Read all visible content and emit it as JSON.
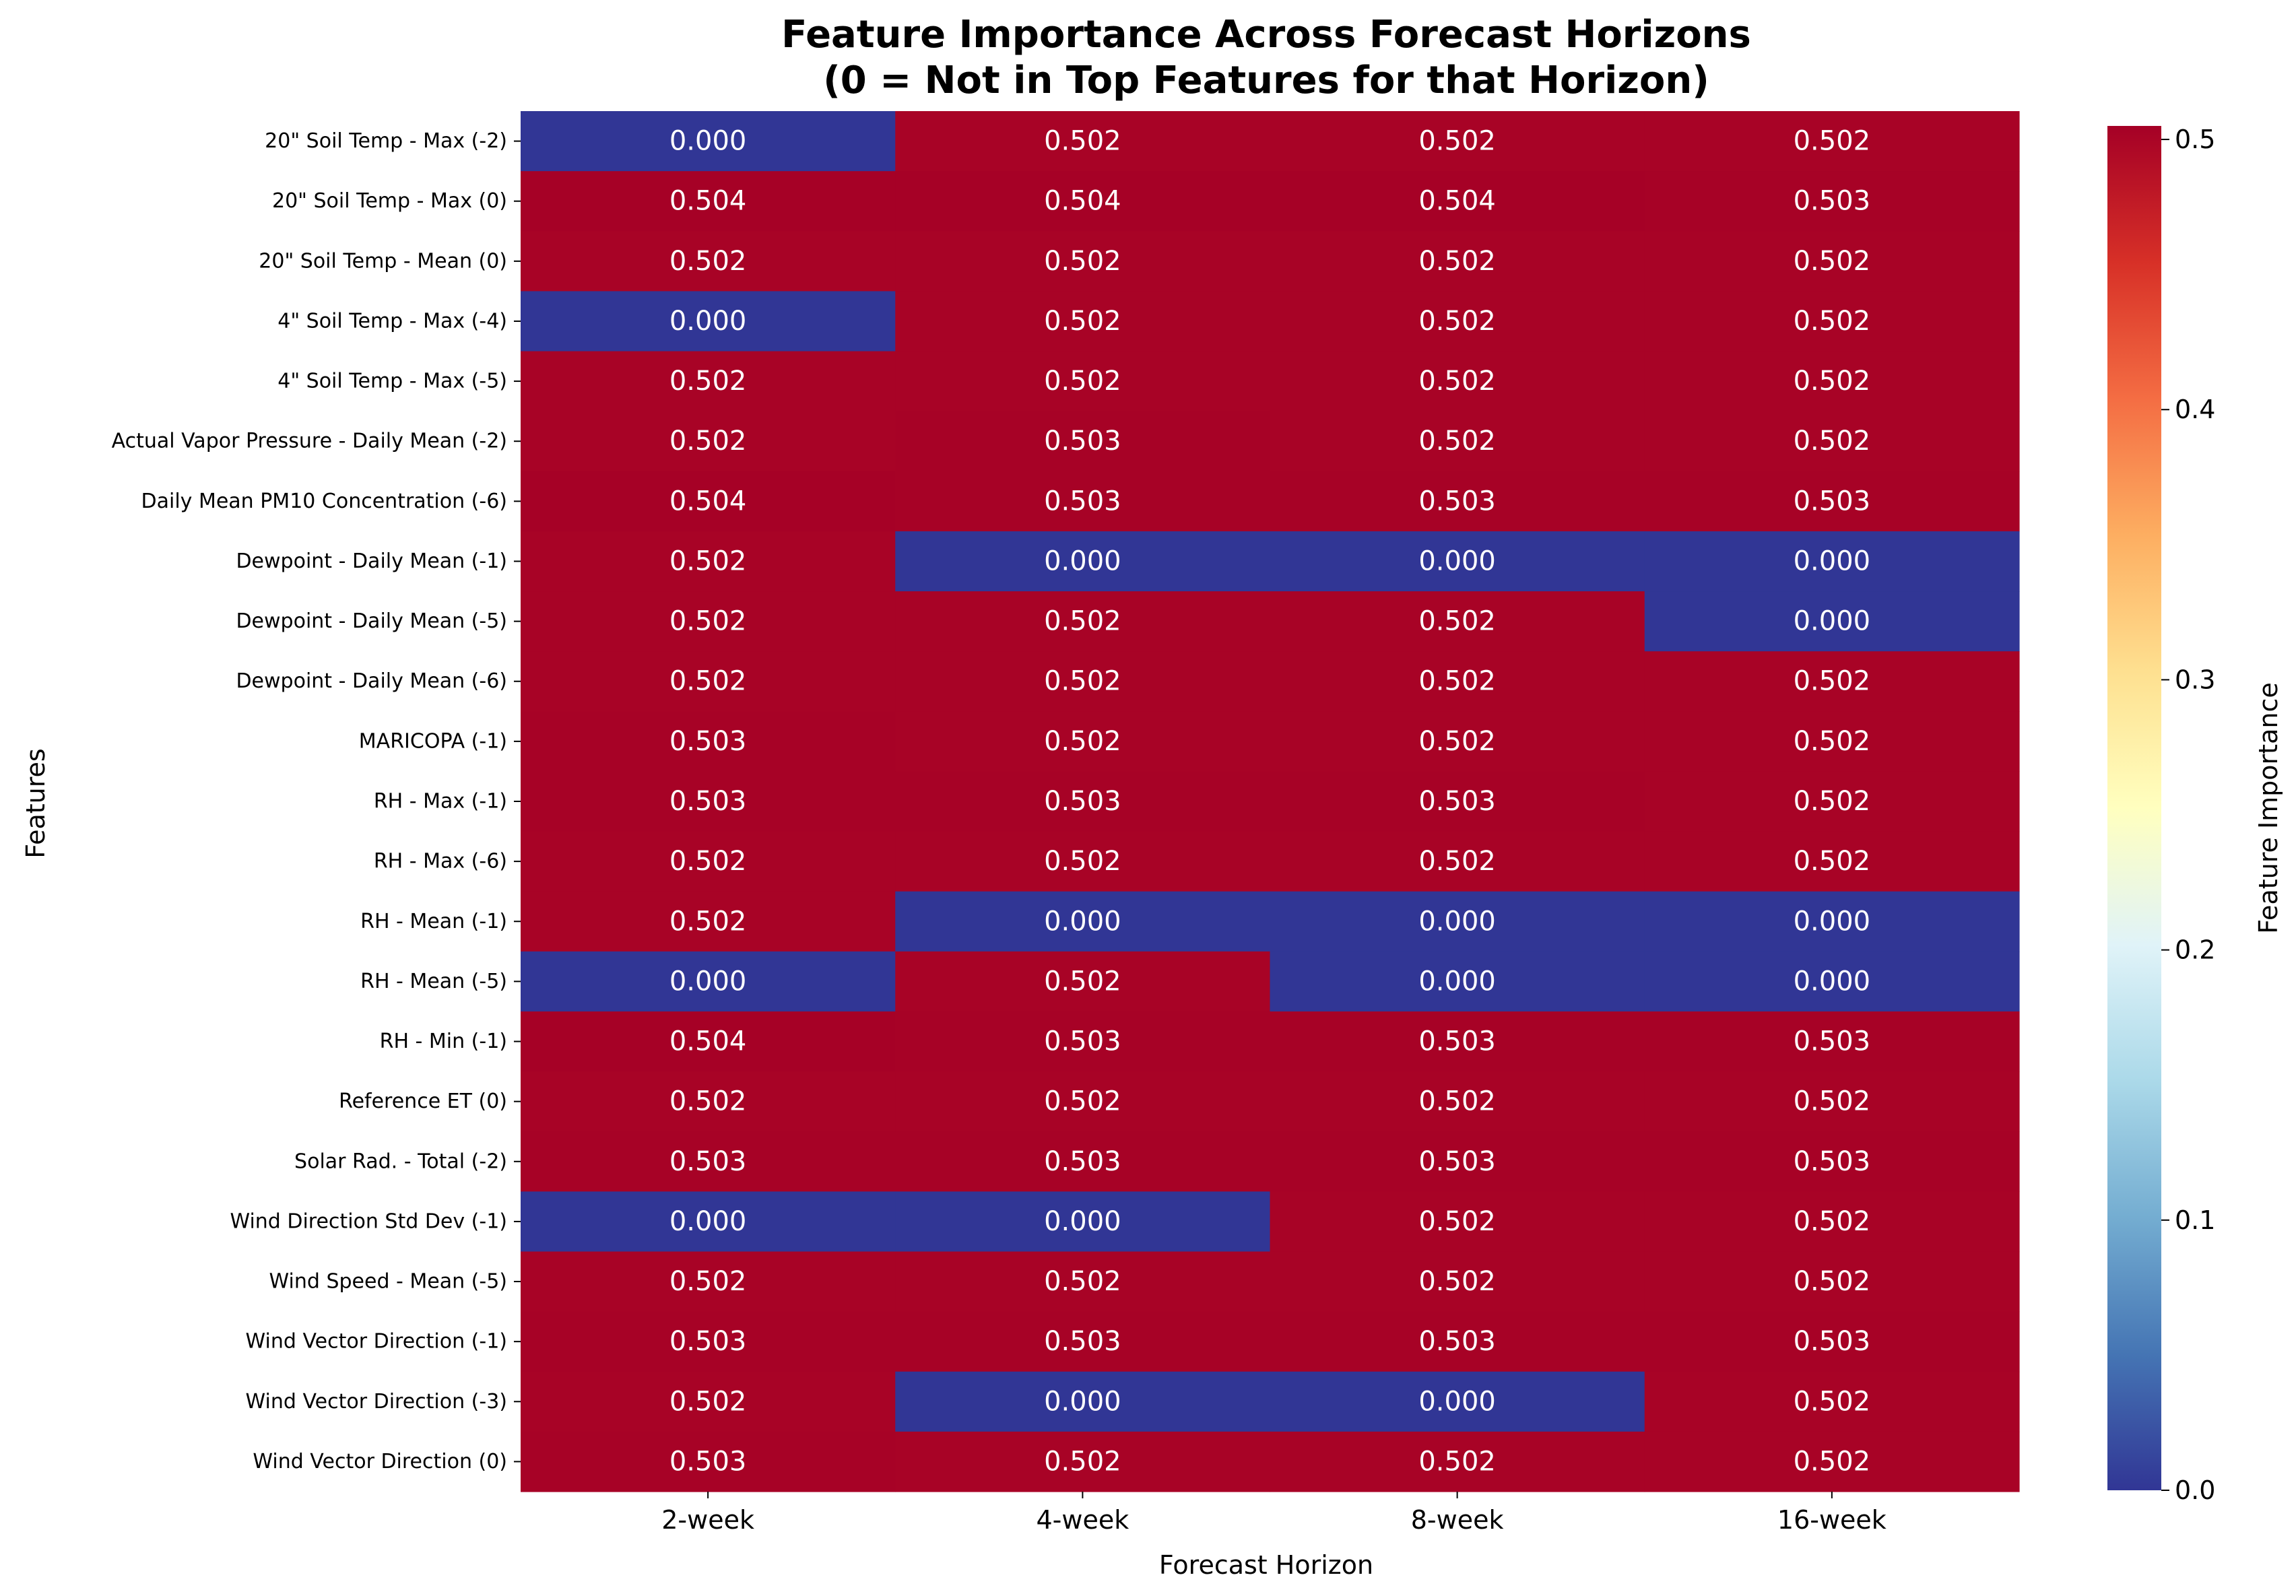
{
  "chart_data": {
    "type": "heatmap",
    "title_lines": [
      "Feature Importance Across Forecast Horizons",
      "(0 = Not in Top Features for that Horizon)"
    ],
    "xlabel": "Forecast Horizon",
    "ylabel": "Features",
    "colorbar_label": "Feature Importance",
    "colormap": "RdYlBu_r",
    "colorbar_range": [
      0,
      0.505
    ],
    "colorbar_ticks": [
      "0.0",
      "0.1",
      "0.2",
      "0.3",
      "0.4",
      "0.5"
    ],
    "columns": [
      "2-week",
      "4-week",
      "8-week",
      "16-week"
    ],
    "rows": [
      "20\" Soil Temp - Max (-2)",
      "20\" Soil Temp - Max (0)",
      "20\" Soil Temp - Mean (0)",
      "4\" Soil Temp - Max (-4)",
      "4\" Soil Temp - Max (-5)",
      "Actual Vapor Pressure - Daily Mean (-2)",
      "Daily Mean PM10 Concentration (-6)",
      "Dewpoint - Daily Mean (-1)",
      "Dewpoint - Daily Mean (-5)",
      "Dewpoint - Daily Mean (-6)",
      "MARICOPA (-1)",
      "RH - Max (-1)",
      "RH - Max (-6)",
      "RH - Mean (-1)",
      "RH - Mean (-5)",
      "RH - Min (-1)",
      "Reference ET (0)",
      "Solar Rad. - Total (-2)",
      "Wind Direction Std Dev (-1)",
      "Wind Speed - Mean (-5)",
      "Wind Vector Direction (-1)",
      "Wind Vector Direction (-3)",
      "Wind Vector Direction (0)"
    ],
    "values": [
      [
        0.0,
        0.502,
        0.502,
        0.502
      ],
      [
        0.504,
        0.504,
        0.504,
        0.503
      ],
      [
        0.502,
        0.502,
        0.502,
        0.502
      ],
      [
        0.0,
        0.502,
        0.502,
        0.502
      ],
      [
        0.502,
        0.502,
        0.502,
        0.502
      ],
      [
        0.502,
        0.503,
        0.502,
        0.502
      ],
      [
        0.504,
        0.503,
        0.503,
        0.503
      ],
      [
        0.502,
        0.0,
        0.0,
        0.0
      ],
      [
        0.502,
        0.502,
        0.502,
        0.0
      ],
      [
        0.502,
        0.502,
        0.502,
        0.502
      ],
      [
        0.503,
        0.502,
        0.502,
        0.502
      ],
      [
        0.503,
        0.503,
        0.503,
        0.502
      ],
      [
        0.502,
        0.502,
        0.502,
        0.502
      ],
      [
        0.502,
        0.0,
        0.0,
        0.0
      ],
      [
        0.0,
        0.502,
        0.0,
        0.0
      ],
      [
        0.504,
        0.503,
        0.503,
        0.503
      ],
      [
        0.502,
        0.502,
        0.502,
        0.502
      ],
      [
        0.503,
        0.503,
        0.503,
        0.503
      ],
      [
        0.0,
        0.0,
        0.502,
        0.502
      ],
      [
        0.502,
        0.502,
        0.502,
        0.502
      ],
      [
        0.503,
        0.503,
        0.503,
        0.503
      ],
      [
        0.502,
        0.0,
        0.0,
        0.502
      ],
      [
        0.503,
        0.502,
        0.502,
        0.502
      ]
    ],
    "colors": {
      "high": "#a50026",
      "low": "#313695"
    }
  }
}
